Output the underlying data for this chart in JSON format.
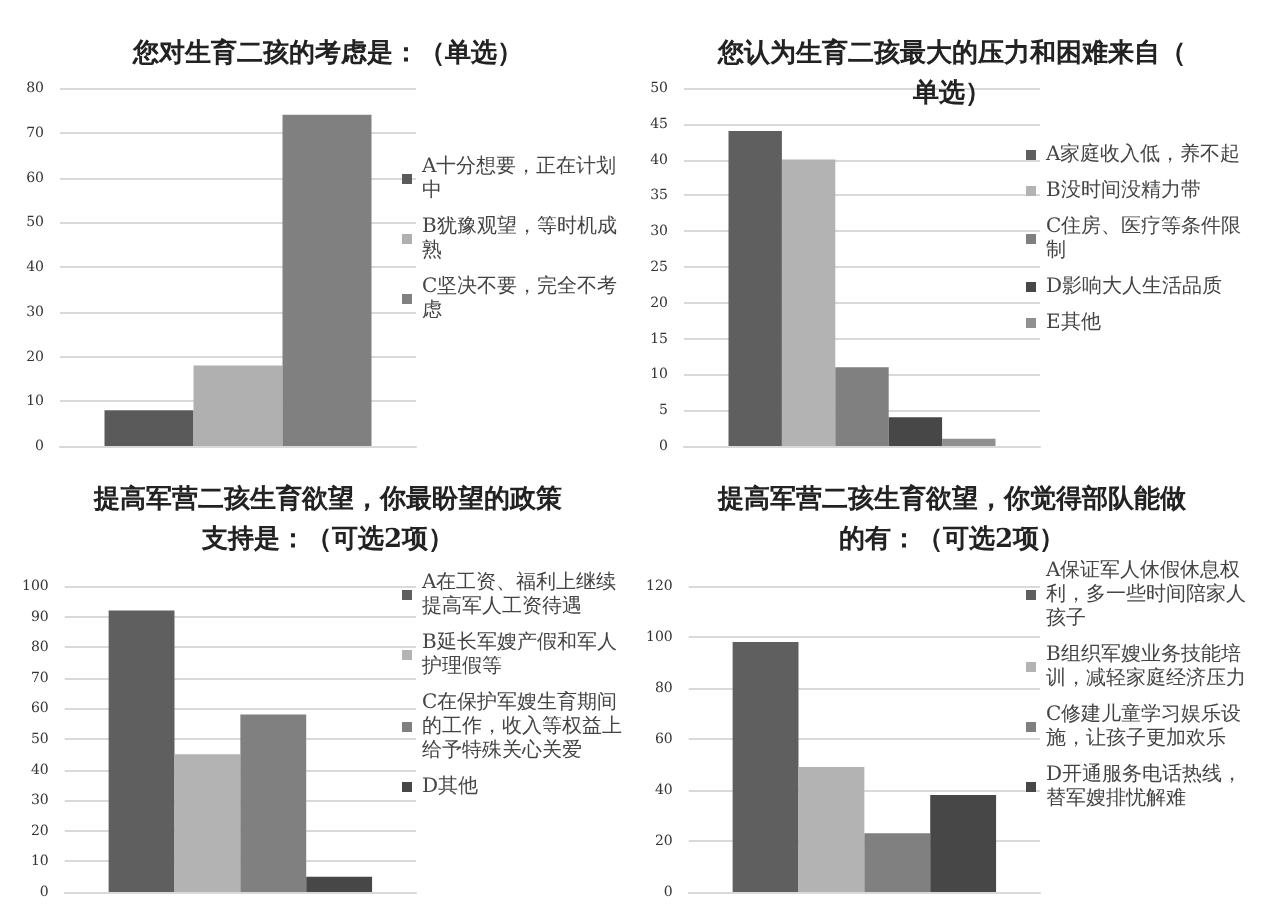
{
  "chart_data": [
    {
      "type": "bar",
      "title": "您对生育二孩的考虑是：（单选）",
      "categories": [
        null
      ],
      "series": [
        {
          "name": "A十分想要，正在计划中",
          "color": "#5a5a5a",
          "values": [
            8
          ]
        },
        {
          "name": "B犹豫观望，等时机成熟",
          "color": "#b0b0b0",
          "values": [
            18
          ]
        },
        {
          "name": "C坚决不要，完全不考虑",
          "color": "#808080",
          "values": [
            74
          ]
        }
      ],
      "ylim": [
        0,
        80
      ],
      "yticks": [
        0,
        10,
        20,
        30,
        40,
        50,
        60,
        70,
        80
      ],
      "grid": "y",
      "legend": "right"
    },
    {
      "type": "bar",
      "title": "您认为生育二孩最大的压力和困难来自（单选）",
      "categories": [
        null
      ],
      "series": [
        {
          "name": "A家庭收入低，养不起",
          "color": "#5f5f5f",
          "values": [
            44
          ]
        },
        {
          "name": "B没时间没精力带",
          "color": "#b3b3b3",
          "values": [
            40
          ]
        },
        {
          "name": "C住房、医疗等条件限制",
          "color": "#808080",
          "values": [
            11
          ]
        },
        {
          "name": "D影响大人生活品质",
          "color": "#474747",
          "values": [
            4
          ]
        },
        {
          "name": "E其他",
          "color": "#909090",
          "values": [
            1
          ]
        }
      ],
      "ylim": [
        0,
        50
      ],
      "yticks": [
        0,
        5,
        10,
        15,
        20,
        25,
        30,
        35,
        40,
        45,
        50
      ],
      "grid": "y",
      "legend": "right"
    },
    {
      "type": "bar",
      "title": "提高军营二孩生育欲望，你最盼望的政策支持是：（可选2项）",
      "categories": [
        null
      ],
      "series": [
        {
          "name": "A在工资、福利上继续提高军人工资待遇",
          "color": "#5f5f5f",
          "values": [
            92
          ]
        },
        {
          "name": "B延长军嫂产假和军人护理假等",
          "color": "#b3b3b3",
          "values": [
            45
          ]
        },
        {
          "name": "C在保护军嫂生育期间的工作，收入等权益上给予特殊关心关爱",
          "color": "#808080",
          "values": [
            58
          ]
        },
        {
          "name": "D其他",
          "color": "#474747",
          "values": [
            5
          ]
        }
      ],
      "ylim": [
        0,
        100
      ],
      "yticks": [
        0,
        10,
        20,
        30,
        40,
        50,
        60,
        70,
        80,
        90,
        100
      ],
      "grid": "y",
      "legend": "right"
    },
    {
      "type": "bar",
      "title": "提高军营二孩生育欲望，你觉得部队能做的有：（可选2项）",
      "categories": [
        null
      ],
      "series": [
        {
          "name": "A保证军人休假休息权利，多一些时间陪家人孩子",
          "color": "#5f5f5f",
          "values": [
            98
          ]
        },
        {
          "name": "B组织军嫂业务技能培训，减轻家庭经济压力",
          "color": "#b3b3b3",
          "values": [
            49
          ]
        },
        {
          "name": "C修建儿童学习娱乐设施，让孩子更加欢乐",
          "color": "#808080",
          "values": [
            23
          ]
        },
        {
          "name": "D开通服务电话热线，替军嫂排忧解难",
          "color": "#474747",
          "values": [
            38
          ]
        }
      ],
      "ylim": [
        0,
        120
      ],
      "yticks": [
        0,
        20,
        40,
        60,
        80,
        100,
        120
      ],
      "grid": "y",
      "legend": "right"
    }
  ]
}
